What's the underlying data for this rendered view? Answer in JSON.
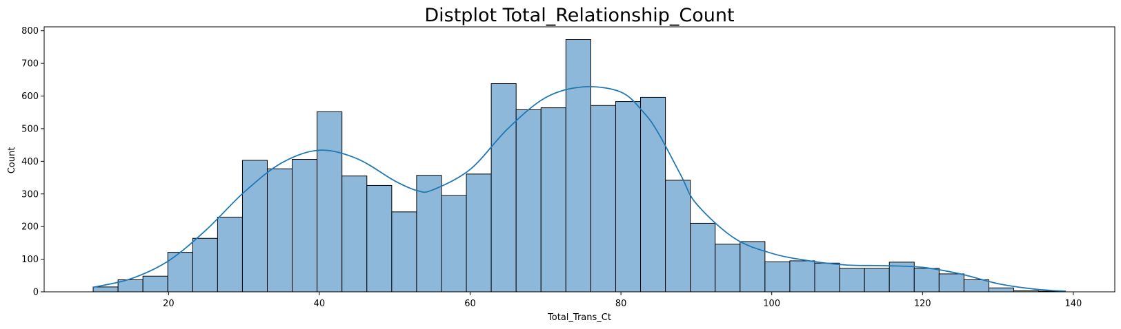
{
  "chart_data": {
    "type": "bar",
    "title": "Distplot Total_Relationship_Count",
    "xlabel": "Total_Trans_Ct",
    "ylabel": "Count",
    "xlim": [
      3.5,
      145.5
    ],
    "ylim": [
      0,
      812
    ],
    "xticks": [
      20,
      40,
      60,
      80,
      100,
      120,
      140
    ],
    "yticks": [
      0,
      100,
      200,
      300,
      400,
      500,
      600,
      700,
      800
    ],
    "bin_start": 10,
    "bin_width": 3.3,
    "values": [
      15,
      37,
      48,
      121,
      164,
      229,
      403,
      377,
      406,
      552,
      355,
      326,
      245,
      357,
      295,
      361,
      638,
      558,
      564,
      773,
      571,
      583,
      596,
      342,
      210,
      146,
      154,
      92,
      95,
      88,
      72,
      72,
      91,
      72,
      55,
      37,
      12,
      3,
      2
    ],
    "kde": {
      "x": [
        10,
        15,
        20,
        25,
        30,
        35,
        40,
        45,
        50,
        53,
        55,
        60,
        65,
        70,
        75,
        80,
        83,
        85,
        88,
        90,
        95,
        100,
        105,
        110,
        115,
        120,
        125,
        130,
        135,
        139
      ],
      "y": [
        14,
        40,
        95,
        190,
        305,
        395,
        434,
        408,
        340,
        310,
        312,
        375,
        500,
        595,
        628,
        612,
        550,
        485,
        355,
        270,
        165,
        118,
        95,
        82,
        80,
        75,
        55,
        25,
        8,
        2
      ]
    },
    "grid": false,
    "colors": {
      "bar_fill": "#8db8da",
      "bar_edge": "#000000",
      "kde_line": "#1f77b4"
    }
  }
}
